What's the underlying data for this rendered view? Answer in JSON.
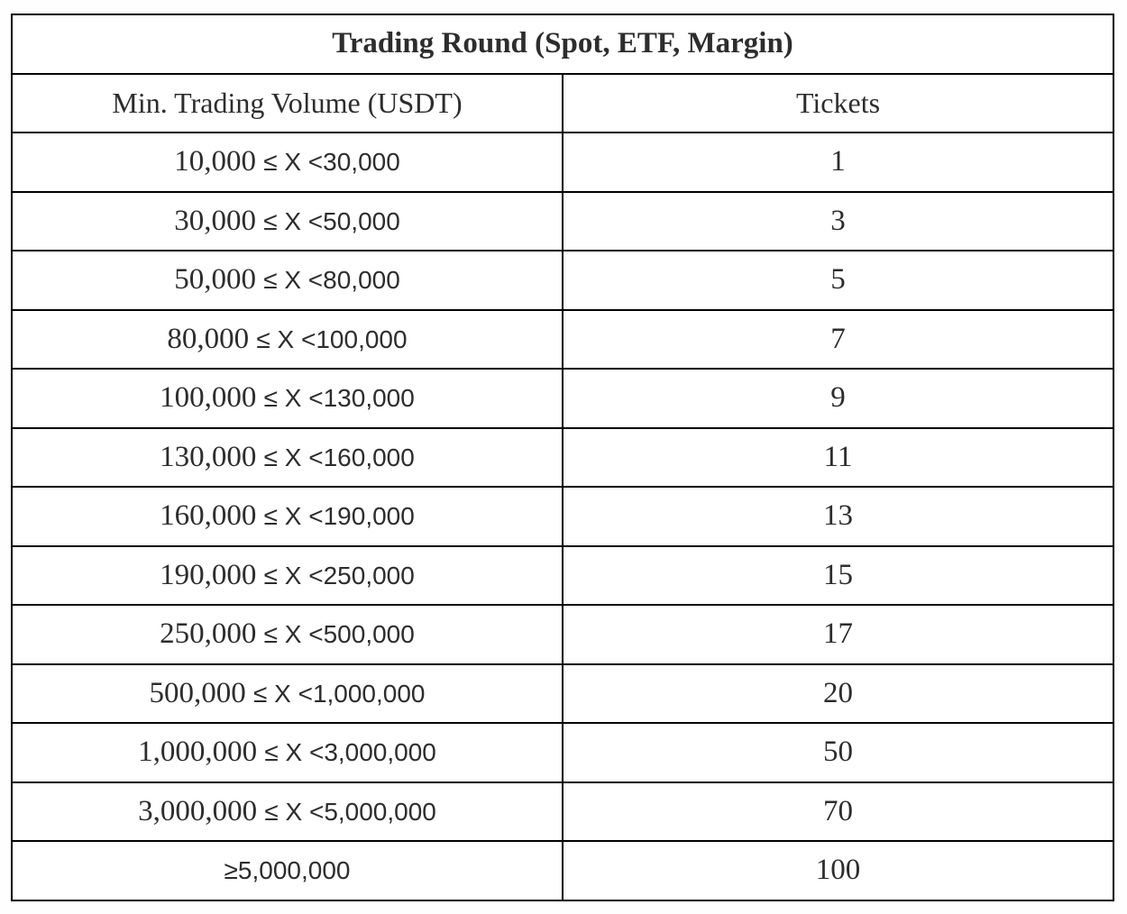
{
  "table": {
    "title": "Trading Round (Spot, ETF, Margin)",
    "columns": [
      "Min. Trading Volume (USDT)",
      "Tickets"
    ],
    "rows": [
      {
        "range_serif": "10,000 ",
        "range_sans": "≤ X <30,000",
        "tickets": "1"
      },
      {
        "range_serif": "30,000 ",
        "range_sans": "≤ X <50,000",
        "tickets": "3"
      },
      {
        "range_serif": "50,000 ",
        "range_sans": "≤ X <80,000",
        "tickets": "5"
      },
      {
        "range_serif": "80,000 ",
        "range_sans": "≤ X <100,000",
        "tickets": "7"
      },
      {
        "range_serif": "100,000 ",
        "range_sans": "≤ X <130,000",
        "tickets": "9"
      },
      {
        "range_serif": "130,000 ",
        "range_sans": "≤ X <160,000",
        "tickets": "11"
      },
      {
        "range_serif": "160,000 ",
        "range_sans": "≤ X <190,000",
        "tickets": "13"
      },
      {
        "range_serif": "190,000 ",
        "range_sans": "≤ X <250,000",
        "tickets": "15"
      },
      {
        "range_serif": "250,000 ",
        "range_sans": "≤ X <500,000",
        "tickets": "17"
      },
      {
        "range_serif": "500,000 ",
        "range_sans": "≤ X <1,000,000",
        "tickets": "20"
      },
      {
        "range_serif": "1,000,000 ",
        "range_sans": "≤ X <3,000,000",
        "tickets": "50"
      },
      {
        "range_serif": "3,000,000 ",
        "range_sans": "≤ X <5,000,000",
        "tickets": "70"
      },
      {
        "range_serif": "",
        "range_sans": "≥5,000,000",
        "tickets": "100"
      }
    ]
  }
}
